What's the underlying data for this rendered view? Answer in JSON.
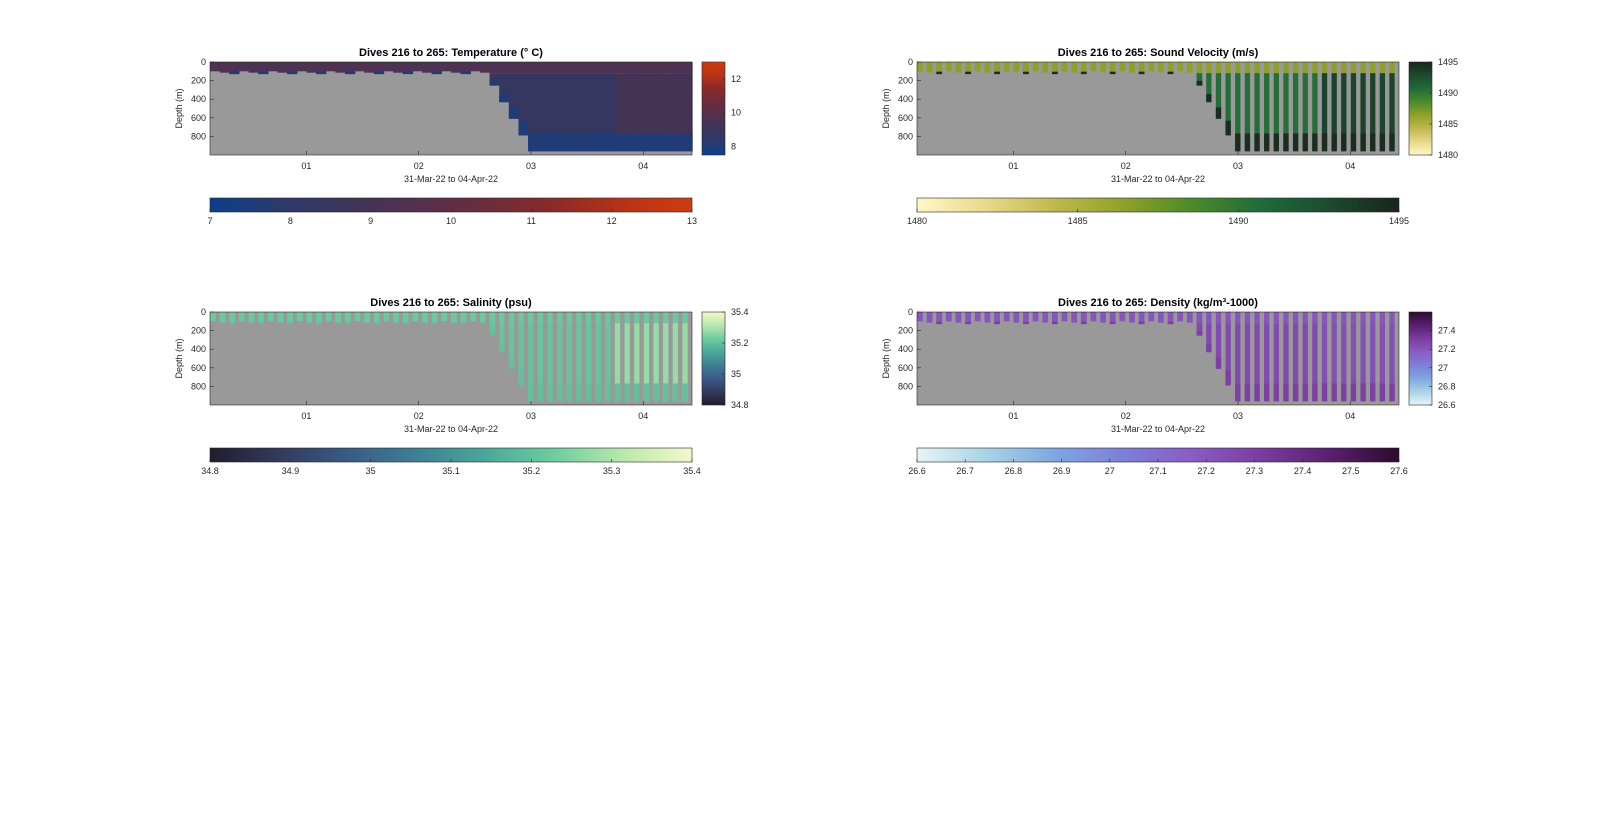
{
  "figure": {
    "background": "#ffffff",
    "no_data_color": "#999999"
  },
  "chart_data": [
    {
      "type": "heatmap",
      "id": "temperature",
      "title": "Dives 216 to 265: Temperature (° C)",
      "xlabel": "31-Mar-22 to 04-Apr-22",
      "ylabel": "Depth (m)",
      "x_ticks": [
        "01",
        "02",
        "03",
        "04"
      ],
      "y_ticks": [
        0,
        200,
        400,
        600,
        800
      ],
      "ylim": [
        0,
        1000
      ],
      "y_reversed": true,
      "colorbar_right": {
        "ticks": [
          8,
          10,
          12
        ],
        "range": [
          7.5,
          13
        ]
      },
      "colorbar_bottom": {
        "ticks": [
          7,
          8,
          9,
          10,
          11,
          12,
          13
        ],
        "range": [
          7,
          13
        ]
      },
      "colormap": [
        "#0b3f8c",
        "#2b3a6c",
        "#3c3559",
        "#55304e",
        "#6c2c3b",
        "#8a2a2a",
        "#b83316",
        "#cf3b10"
      ],
      "dives": 50,
      "surface_value": 9.6,
      "deep_value": 8.0,
      "warm_value": 10.6
    },
    {
      "type": "heatmap",
      "id": "sound_velocity",
      "title": "Dives 216 to 265: Sound Velocity (m/s)",
      "xlabel": "31-Mar-22 to 04-Apr-22",
      "ylabel": "Depth (m)",
      "x_ticks": [
        "01",
        "02",
        "03",
        "04"
      ],
      "y_ticks": [
        0,
        200,
        400,
        600,
        800
      ],
      "ylim": [
        0,
        1000
      ],
      "y_reversed": true,
      "colorbar_right": {
        "ticks": [
          1480,
          1485,
          1490,
          1495
        ],
        "range": [
          1480,
          1495
        ]
      },
      "colorbar_bottom": {
        "ticks": [
          1480,
          1485,
          1490,
          1495
        ],
        "range": [
          1480,
          1495
        ]
      },
      "colormap": [
        "#fdf8c8",
        "#e8d98a",
        "#bfb84e",
        "#8fa22a",
        "#4d8a2a",
        "#1f6c3a",
        "#1c4a2e",
        "#1a241c"
      ],
      "dives": 50,
      "surface_value": 1486.5,
      "deep_value": 1494.5,
      "warm_value": 1492.0
    },
    {
      "type": "heatmap",
      "id": "salinity",
      "title": "Dives 216 to 265: Salinity (psu)",
      "xlabel": "31-Mar-22 to 04-Apr-22",
      "ylabel": "Depth (m)",
      "x_ticks": [
        "01",
        "02",
        "03",
        "04"
      ],
      "y_ticks": [
        0,
        200,
        400,
        600,
        800
      ],
      "ylim": [
        0,
        1000
      ],
      "y_reversed": true,
      "colorbar_right": {
        "ticks": [
          34.8,
          35,
          35.2,
          35.4
        ],
        "range": [
          34.8,
          35.4
        ]
      },
      "colorbar_bottom": {
        "ticks": [
          34.8,
          34.9,
          35,
          35.1,
          35.2,
          35.3,
          35.4
        ],
        "range": [
          34.8,
          35.4
        ]
      },
      "colormap": [
        "#231d2e",
        "#333a5c",
        "#3a5a88",
        "#3f7f93",
        "#4aa89a",
        "#6fcc9f",
        "#b9e8ad",
        "#f4f8cc"
      ],
      "dives": 50,
      "surface_value": 35.22,
      "deep_value": 35.2,
      "warm_value": 35.35
    },
    {
      "type": "heatmap",
      "id": "density",
      "title": "Dives 216 to 265: Density (kg/m³-1000)",
      "xlabel": "31-Mar-22 to 04-Apr-22",
      "ylabel": "Depth (m)",
      "x_ticks": [
        "01",
        "02",
        "03",
        "04"
      ],
      "y_ticks": [
        0,
        200,
        400,
        600,
        800
      ],
      "ylim": [
        0,
        1000
      ],
      "y_reversed": true,
      "colorbar_right": {
        "ticks": [
          26.6,
          26.8,
          27,
          27.2,
          27.4
        ],
        "range": [
          26.6,
          27.6
        ]
      },
      "colorbar_bottom": {
        "ticks": [
          26.6,
          26.7,
          26.8,
          26.9,
          27,
          27.1,
          27.2,
          27.3,
          27.4,
          27.5,
          27.6
        ],
        "range": [
          26.6,
          27.6
        ]
      },
      "colormap": [
        "#e8f4f6",
        "#a9d3e6",
        "#7fa6e0",
        "#7d7fd8",
        "#8a5cc4",
        "#7b3c9f",
        "#5a1f6f",
        "#2c0b2e"
      ],
      "dives": 50,
      "surface_value": 27.2,
      "deep_value": 27.3,
      "warm_value": 27.15
    }
  ]
}
